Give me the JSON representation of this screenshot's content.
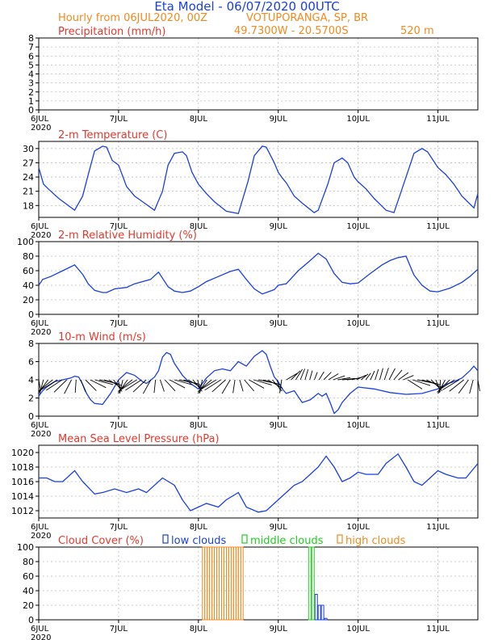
{
  "header": {
    "title": "Eta Model - 06/07/2020 00UTC",
    "subtitle_left": "Hourly from 06JUL2020, 00Z",
    "location": "VOTUPORANGA, SP, BR",
    "coords": "49.7300W - 20.5700S",
    "elevation": "520  m"
  },
  "colors": {
    "title_blue": "#1a3fe0",
    "subtitle_orange": "#f08a20",
    "panel_red": "#e8372c",
    "line_blue": "#1a3fe0",
    "low_clouds": "#1a3fe0",
    "middle_clouds": "#22cc22",
    "high_clouds": "#f08a20",
    "grid": "#bdbdbd"
  },
  "x_axis": {
    "ticks": [
      {
        "label": "6JUL",
        "day": 0
      },
      {
        "label": "7JUL",
        "day": 1
      },
      {
        "label": "8JUL",
        "day": 2
      },
      {
        "label": "9JUL",
        "day": 3
      },
      {
        "label": "10JUL",
        "day": 4
      },
      {
        "label": "11JUL",
        "day": 5
      }
    ],
    "year_label": "2020",
    "range_days": [
      0,
      5.5
    ]
  },
  "chart_data": [
    {
      "type": "bar",
      "id": "precip",
      "title": "Precipitation (mm/h)",
      "ylim": [
        0,
        8
      ],
      "yticks": [
        0,
        1,
        2,
        3,
        4,
        5,
        6,
        7,
        8
      ],
      "values": []
    },
    {
      "type": "line",
      "id": "temp",
      "title": "2-m Temperature (C)",
      "ylim": [
        15.5,
        31.5
      ],
      "yticks": [
        18,
        21,
        24,
        27,
        30
      ],
      "x": [
        0,
        0.06,
        0.12,
        0.25,
        0.45,
        0.55,
        0.62,
        0.7,
        0.8,
        0.85,
        0.92,
        1.0,
        1.1,
        1.2,
        1.3,
        1.45,
        1.55,
        1.62,
        1.7,
        1.8,
        1.85,
        1.92,
        2.0,
        2.1,
        2.2,
        2.35,
        2.5,
        2.62,
        2.7,
        2.8,
        2.85,
        2.95,
        3.0,
        3.05,
        3.1,
        3.2,
        3.3,
        3.45,
        3.5,
        3.62,
        3.7,
        3.8,
        3.87,
        3.95,
        4.0,
        4.1,
        4.2,
        4.35,
        4.45,
        4.52,
        4.62,
        4.7,
        4.8,
        4.87,
        5.0,
        5.1,
        5.2,
        5.3,
        5.45,
        5.5
      ],
      "values": [
        26.0,
        22.5,
        21.5,
        19.5,
        17.0,
        20.0,
        24.5,
        29.5,
        30.5,
        30.3,
        27.5,
        26.5,
        22.0,
        20.0,
        18.8,
        17.0,
        21.0,
        26.5,
        29.0,
        29.3,
        28.5,
        25.0,
        22.5,
        20.5,
        18.8,
        16.8,
        16.3,
        23.0,
        28.5,
        30.5,
        30.3,
        27.0,
        25.0,
        23.8,
        22.8,
        20.0,
        18.5,
        16.5,
        17.0,
        22.5,
        27.0,
        28.0,
        27.0,
        24.0,
        23.0,
        21.5,
        19.5,
        17.0,
        16.5,
        20.0,
        25.0,
        29.0,
        30.0,
        29.3,
        26.0,
        24.5,
        22.5,
        20.0,
        17.5,
        20.5
      ]
    },
    {
      "type": "line",
      "id": "rh",
      "title": "2-m Relative Humidity (%)",
      "ylim": [
        0,
        100
      ],
      "yticks": [
        0,
        20,
        40,
        60,
        80,
        100
      ],
      "x": [
        0,
        0.05,
        0.15,
        0.3,
        0.45,
        0.55,
        0.62,
        0.7,
        0.8,
        0.85,
        0.95,
        1.1,
        1.2,
        1.3,
        1.4,
        1.5,
        1.62,
        1.7,
        1.8,
        1.9,
        2.0,
        2.1,
        2.25,
        2.4,
        2.5,
        2.6,
        2.7,
        2.8,
        2.85,
        2.95,
        3.0,
        3.1,
        3.25,
        3.4,
        3.5,
        3.6,
        3.7,
        3.8,
        3.9,
        4.0,
        4.15,
        4.3,
        4.4,
        4.5,
        4.6,
        4.7,
        4.8,
        4.9,
        5.0,
        5.15,
        5.3,
        5.4,
        5.5
      ],
      "values": [
        40,
        48,
        52,
        60,
        68,
        55,
        42,
        33,
        30,
        30,
        35,
        37,
        42,
        45,
        48,
        58,
        38,
        32,
        30,
        32,
        38,
        45,
        52,
        59,
        62,
        48,
        35,
        28,
        30,
        34,
        40,
        42,
        60,
        74,
        84,
        76,
        56,
        44,
        42,
        43,
        56,
        68,
        74,
        78,
        80,
        54,
        40,
        32,
        31,
        36,
        44,
        52,
        62
      ]
    },
    {
      "type": "line",
      "id": "wind",
      "title": "10-m Wind (m/s)",
      "ylim": [
        0,
        8
      ],
      "yticks": [
        0,
        2,
        4,
        6,
        8
      ],
      "note": "arrows indicate wind direction",
      "x": [
        0,
        0.05,
        0.1,
        0.2,
        0.3,
        0.4,
        0.45,
        0.5,
        0.55,
        0.6,
        0.65,
        0.7,
        0.8,
        0.9,
        1.0,
        1.1,
        1.2,
        1.3,
        1.35,
        1.45,
        1.5,
        1.55,
        1.6,
        1.65,
        1.7,
        1.8,
        1.9,
        2.0,
        2.1,
        2.2,
        2.3,
        2.4,
        2.5,
        2.6,
        2.7,
        2.8,
        2.85,
        2.9,
        2.95,
        3.0,
        3.05,
        3.1,
        3.2,
        3.3,
        3.4,
        3.5,
        3.55,
        3.6,
        3.65,
        3.7,
        3.75,
        3.8,
        3.9,
        4.0,
        4.2,
        4.4,
        4.6,
        4.8,
        5.0,
        5.1,
        5.2,
        5.3,
        5.4,
        5.45,
        5.5
      ],
      "values": [
        2.2,
        2.8,
        3.2,
        3.8,
        4.0,
        4.2,
        4.4,
        4.3,
        3.5,
        2.5,
        1.8,
        1.4,
        1.3,
        2.5,
        4.0,
        4.8,
        4.5,
        3.8,
        3.6,
        4.3,
        5.0,
        6.5,
        7.0,
        6.8,
        5.8,
        4.5,
        3.6,
        3.0,
        4.2,
        5.0,
        5.2,
        5.0,
        6.0,
        5.5,
        6.6,
        7.2,
        6.8,
        5.5,
        4.3,
        3.8,
        3.0,
        2.5,
        2.8,
        1.5,
        1.8,
        2.5,
        2.2,
        2.5,
        1.5,
        0.3,
        0.7,
        1.5,
        2.5,
        3.2,
        3.0,
        2.6,
        2.4,
        2.5,
        3.0,
        3.5,
        3.8,
        4.2,
        5.0,
        5.5,
        5.0
      ]
    },
    {
      "type": "line",
      "id": "mslp",
      "title": "Mean Sea Level Pressure (hPa)",
      "ylim": [
        1011,
        1021
      ],
      "yticks": [
        1012,
        1014,
        1016,
        1018,
        1020
      ],
      "x": [
        0,
        0.1,
        0.2,
        0.3,
        0.45,
        0.55,
        0.7,
        0.8,
        0.95,
        1.1,
        1.25,
        1.35,
        1.55,
        1.7,
        1.8,
        1.9,
        2.0,
        2.1,
        2.25,
        2.35,
        2.5,
        2.6,
        2.75,
        2.85,
        3.0,
        3.1,
        3.2,
        3.3,
        3.4,
        3.5,
        3.6,
        3.7,
        3.8,
        3.9,
        4.0,
        4.1,
        4.25,
        4.35,
        4.5,
        4.6,
        4.7,
        4.8,
        4.9,
        5.0,
        5.1,
        5.25,
        5.35,
        5.5
      ],
      "values": [
        1016.5,
        1016.5,
        1016.0,
        1016.0,
        1017.5,
        1016.0,
        1014.3,
        1014.5,
        1015.0,
        1014.5,
        1015.0,
        1014.5,
        1016.5,
        1015.5,
        1013.5,
        1012.0,
        1012.5,
        1013.0,
        1012.5,
        1013.5,
        1014.5,
        1012.5,
        1011.8,
        1012.0,
        1013.5,
        1014.5,
        1015.5,
        1016.0,
        1017.0,
        1018.0,
        1019.5,
        1018.0,
        1016.0,
        1016.5,
        1017.3,
        1017.0,
        1017.0,
        1018.5,
        1019.8,
        1018.0,
        1016.0,
        1015.5,
        1016.5,
        1017.5,
        1017.0,
        1016.5,
        1016.5,
        1018.5
      ]
    },
    {
      "type": "bar",
      "id": "cloud",
      "title": "Cloud Cover (%)",
      "ylim": [
        0,
        100
      ],
      "yticks": [
        0,
        20,
        40,
        60,
        80,
        100
      ],
      "legend": [
        "low clouds",
        "middle clouds",
        "high clouds"
      ],
      "series": [
        {
          "name": "low clouds",
          "x": [
            3.48,
            3.52,
            3.56,
            3.6
          ],
          "values": [
            35,
            20,
            20,
            2
          ]
        },
        {
          "name": "middle clouds",
          "x": [
            3.4,
            3.44
          ],
          "values": [
            100,
            100
          ]
        },
        {
          "name": "high clouds",
          "x": [
            2.07,
            2.1,
            2.13,
            2.16,
            2.19,
            2.22,
            2.25,
            2.28,
            2.31,
            2.34,
            2.37,
            2.4,
            2.43,
            2.46,
            2.49,
            2.52,
            2.55
          ],
          "values": [
            100,
            100,
            100,
            100,
            100,
            100,
            100,
            100,
            100,
            100,
            100,
            100,
            100,
            100,
            100,
            100,
            100
          ]
        }
      ]
    }
  ]
}
